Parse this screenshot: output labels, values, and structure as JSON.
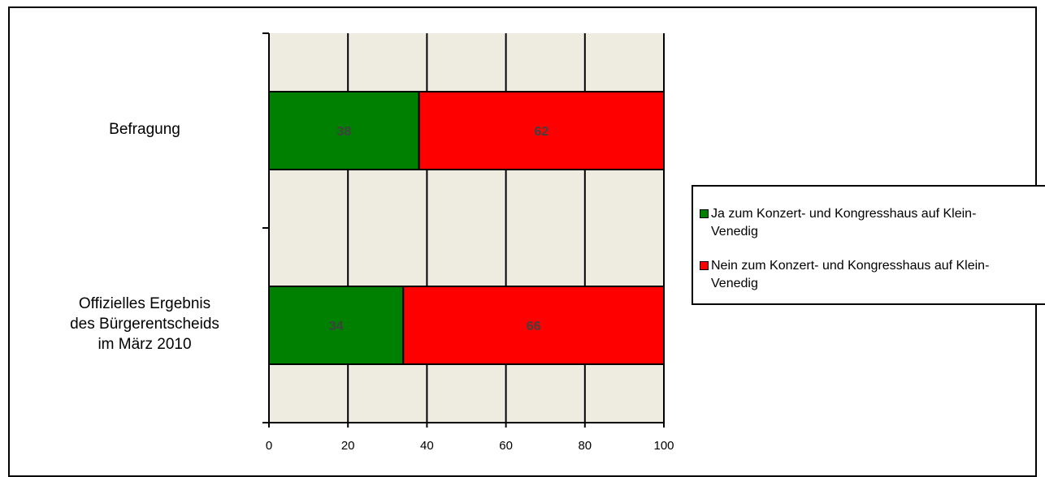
{
  "chart_data": {
    "type": "bar",
    "orientation": "horizontal",
    "stacked": true,
    "categories": [
      "Befragung",
      "Offizielles Ergebnis\ndes Bürgerentscheids\nim März 2010"
    ],
    "series": [
      {
        "name": "Ja zum Konzert- und Kongresshaus auf Klein-Venedig",
        "values": [
          38,
          34
        ],
        "color": "#008000"
      },
      {
        "name": "Nein zum Konzert- und Kongresshaus auf Klein-Venedig",
        "values": [
          62,
          66
        ],
        "color": "#ff0000"
      }
    ],
    "xlim": [
      0,
      100
    ],
    "xticks": [
      0,
      20,
      40,
      60,
      80,
      100
    ],
    "grid": true,
    "plot_background": "#eeece1",
    "legend_position": "right",
    "data_label_color": "#404040"
  }
}
